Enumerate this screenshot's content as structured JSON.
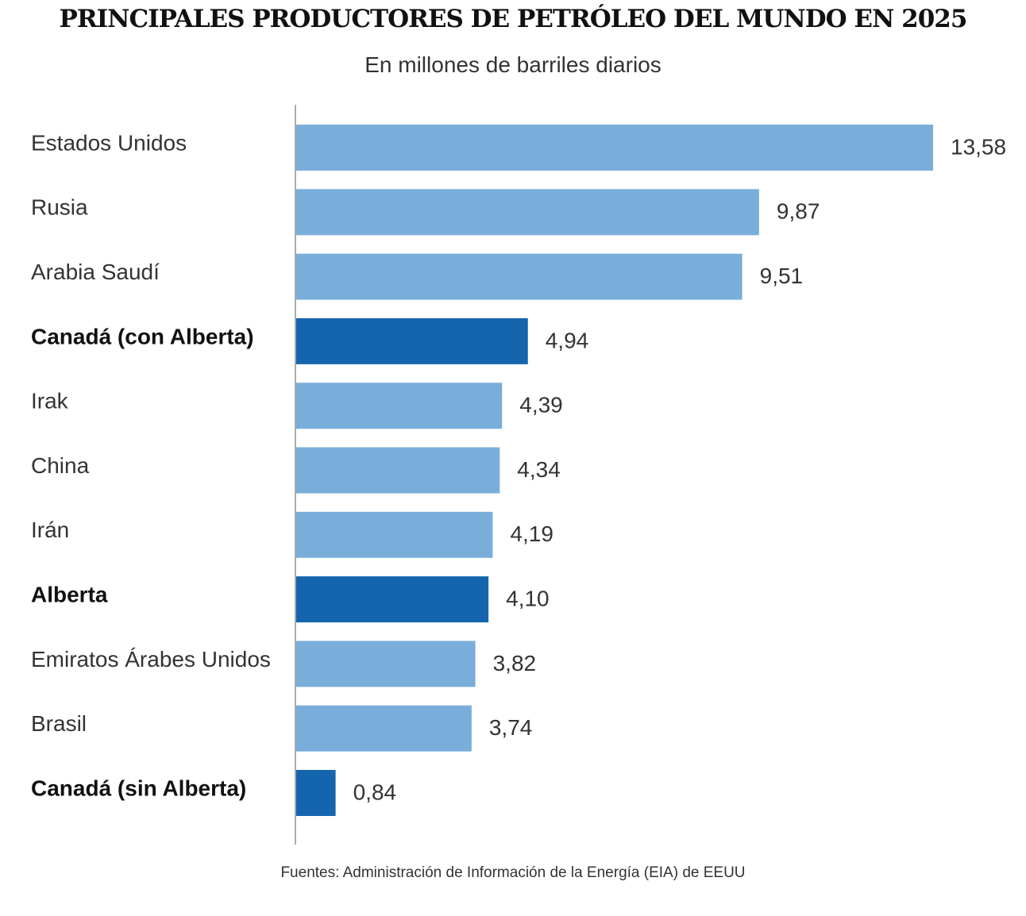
{
  "title": "PRINCIPALES PRODUCTORES DE PETRÓLEO DEL MUNDO EN 2025",
  "subtitle": "En millones de barriles diarios",
  "source": "Fuentes: Administración de Información de la Energía (EIA) de EEUU",
  "colors": {
    "bar": "#79aedb",
    "bar_highlight": "#1565ae",
    "axis": "#555555"
  },
  "chart_data": {
    "type": "bar",
    "orientation": "horizontal",
    "categories": [
      "Estados Unidos",
      "Rusia",
      "Arabia Saudí",
      "Canadá (con Alberta)",
      "Irak",
      "China",
      "Irán",
      "Alberta",
      "Emiratos Árabes Unidos",
      "Brasil",
      "Canadá (sin Alberta)"
    ],
    "values": [
      13.58,
      9.87,
      9.51,
      4.94,
      4.39,
      4.34,
      4.19,
      4.1,
      3.82,
      3.74,
      0.84
    ],
    "value_labels": [
      "13,58",
      "9,87",
      "9,51",
      "4,94",
      "4,39",
      "4,34",
      "4,19",
      "4,10",
      "3,82",
      "3,74",
      "0,84"
    ],
    "highlighted": [
      false,
      false,
      false,
      true,
      false,
      false,
      false,
      true,
      false,
      false,
      true
    ],
    "xlim": [
      0,
      13.58
    ],
    "grid": false,
    "legend": "none"
  }
}
